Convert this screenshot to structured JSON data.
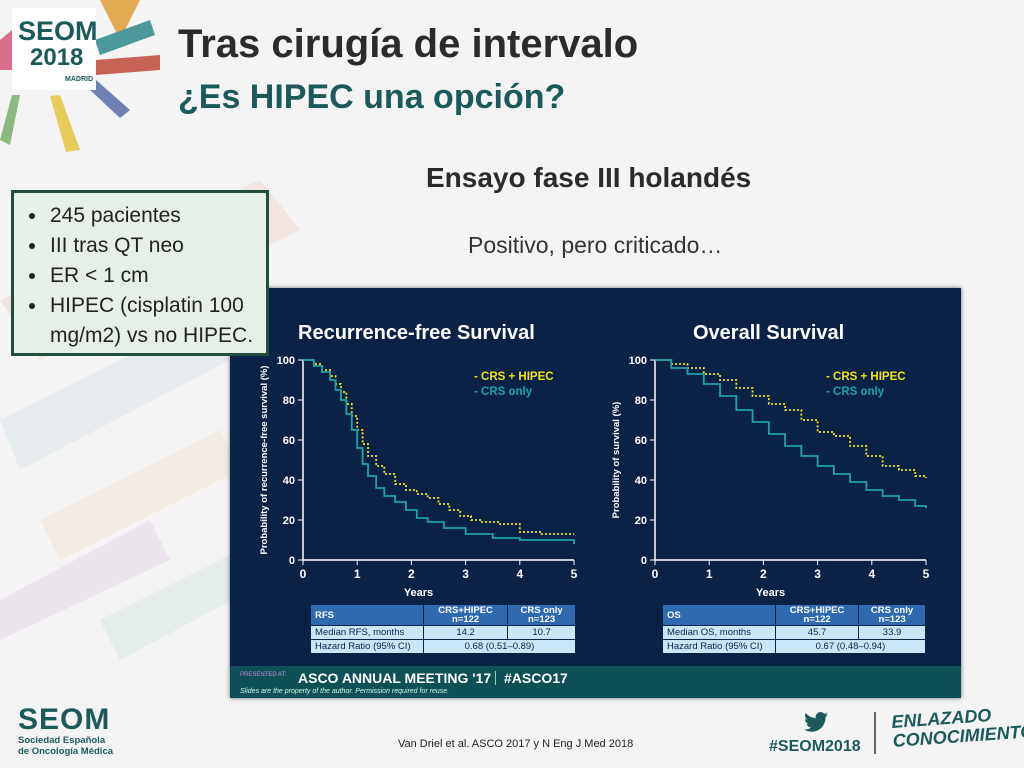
{
  "slide": {
    "title": "Tras cirugía de intervalo",
    "subtitle": "¿Es HIPEC una opción?",
    "section_heading": "Ensayo fase III holandés",
    "section_note": "Positivo, pero criticado…",
    "bullets": [
      "245 pacientes",
      "III tras QT neo",
      "ER < 1 cm",
      "HIPEC (cisplatin 100 mg/m2) vs no HIPEC."
    ],
    "citation": "Van Driel et al. ASCO 2017 y N Eng J Med 2018",
    "hashtag": "#SEOM2018",
    "tagline": [
      "ENLAZADO",
      "CONOCIMIENTO"
    ]
  },
  "logo": {
    "badge_line1": "SEOM",
    "badge_line2": "2018",
    "badge_line3": "MADRID",
    "org_name": "SEOM",
    "org_sub_line1": "Sociedad Española",
    "org_sub_line2": "de Oncología Médica"
  },
  "icons": {
    "twitter": "twitter-bird-icon"
  },
  "colors": {
    "panel_bg": "#0b2247",
    "crs_hipec": "#f2e21a",
    "crs_only": "#1fa3a3",
    "table_header": "#2f69b0",
    "table_row": "#c8e7f6",
    "brand_teal": "#1c5a5a"
  },
  "conference": {
    "presented_at": "PRESENTED AT:",
    "name": "ASCO ANNUAL MEETING '17",
    "tag": "#ASCO17",
    "note": "Slides are the property of the author. Permission required for reuse."
  },
  "tables": [
    {
      "header": [
        "RFS",
        "CRS+HIPEC\nn=122",
        "CRS only\nn=123"
      ],
      "rows": [
        [
          "Median RFS, months",
          "14.2",
          "10.7"
        ],
        [
          "Hazard Ratio (95% CI)",
          "0.68 (0.51–0.89)"
        ]
      ]
    },
    {
      "header": [
        "OS",
        "CRS+HIPEC\nn=122",
        "CRS only\nn=123"
      ],
      "rows": [
        [
          "Median OS, months",
          "45.7",
          "33.9"
        ],
        [
          "Hazard Ratio (95% CI)",
          "0.67 (0.48–0.94)"
        ]
      ]
    }
  ],
  "chart_data": [
    {
      "type": "line",
      "title": "Recurrence-free Survival",
      "xlabel": "Years",
      "ylabel": "Probability of recurrence-free survival (%)",
      "xlim": [
        0,
        5
      ],
      "ylim": [
        0,
        100
      ],
      "xticks": [
        "0",
        "1",
        "2",
        "3",
        "4",
        "5"
      ],
      "yticks": [
        "0",
        "20",
        "40",
        "60",
        "80",
        "100"
      ],
      "legend_position": "top-right",
      "series": [
        {
          "name": "- CRS + HIPEC",
          "color": "#f2e21a",
          "dashed": true,
          "x": [
            0,
            0.2,
            0.35,
            0.5,
            0.6,
            0.7,
            0.8,
            0.9,
            1.0,
            1.1,
            1.2,
            1.35,
            1.5,
            1.7,
            1.9,
            2.1,
            2.3,
            2.5,
            2.7,
            2.9,
            3.1,
            3.3,
            3.6,
            4.0,
            4.4,
            5.0
          ],
          "y": [
            100,
            98,
            95,
            92,
            88,
            84,
            78,
            72,
            65,
            58,
            52,
            47,
            43,
            38,
            35,
            33,
            31,
            28,
            25,
            22,
            20,
            19,
            18,
            14,
            13,
            13
          ]
        },
        {
          "name": "- CRS only",
          "color": "#1fa3a3",
          "dashed": false,
          "x": [
            0,
            0.2,
            0.35,
            0.5,
            0.6,
            0.7,
            0.8,
            0.9,
            1.0,
            1.1,
            1.2,
            1.35,
            1.5,
            1.7,
            1.9,
            2.1,
            2.3,
            2.6,
            3.0,
            3.5,
            4.0,
            4.5,
            4.9,
            5.0
          ],
          "y": [
            100,
            97,
            94,
            90,
            85,
            80,
            73,
            65,
            56,
            48,
            42,
            36,
            32,
            29,
            25,
            21,
            19,
            16,
            13,
            11,
            10,
            10,
            10,
            8
          ]
        }
      ]
    },
    {
      "type": "line",
      "title": "Overall Survival",
      "xlabel": "Years",
      "ylabel": "Probability of survival (%)",
      "xlim": [
        0,
        5
      ],
      "ylim": [
        0,
        100
      ],
      "xticks": [
        "0",
        "1",
        "2",
        "3",
        "4",
        "5"
      ],
      "yticks": [
        "0",
        "20",
        "40",
        "60",
        "80",
        "100"
      ],
      "legend_position": "top-right",
      "series": [
        {
          "name": "- CRS + HIPEC",
          "color": "#f2e21a",
          "dashed": true,
          "x": [
            0,
            0.3,
            0.6,
            0.9,
            1.2,
            1.5,
            1.8,
            2.1,
            2.4,
            2.7,
            3.0,
            3.3,
            3.6,
            3.9,
            4.2,
            4.5,
            4.8,
            5.0
          ],
          "y": [
            100,
            98,
            96,
            93,
            90,
            86,
            82,
            78,
            75,
            70,
            64,
            62,
            57,
            52,
            47,
            45,
            42,
            41
          ]
        },
        {
          "name": "- CRS only",
          "color": "#1fa3a3",
          "dashed": false,
          "x": [
            0,
            0.3,
            0.6,
            0.9,
            1.2,
            1.5,
            1.8,
            2.1,
            2.4,
            2.7,
            3.0,
            3.3,
            3.6,
            3.9,
            4.2,
            4.5,
            4.8,
            5.0
          ],
          "y": [
            100,
            96,
            93,
            88,
            82,
            75,
            69,
            63,
            57,
            52,
            47,
            43,
            39,
            35,
            32,
            30,
            27,
            26
          ]
        }
      ]
    }
  ]
}
